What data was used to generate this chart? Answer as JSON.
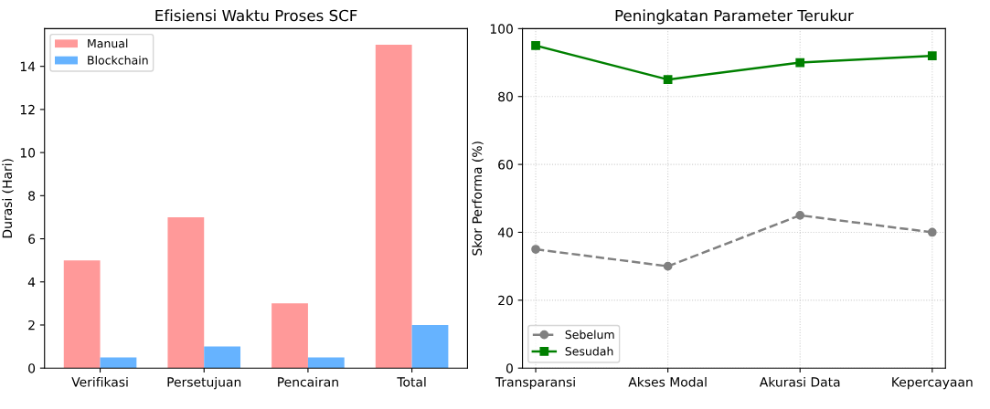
{
  "chart_data": [
    {
      "type": "bar",
      "title": "Efisiensi Waktu Proses SCF",
      "ylabel": "Durasi (Hari)",
      "categories": [
        "Verifikasi",
        "Persetujuan",
        "Pencairan",
        "Total"
      ],
      "series": [
        {
          "name": "Manual",
          "color": "#ff9999",
          "values": [
            5,
            7,
            3,
            15
          ]
        },
        {
          "name": "Blockchain",
          "color": "#66b3ff",
          "values": [
            0.5,
            1,
            0.5,
            2
          ]
        }
      ],
      "ylim": [
        0,
        15.75
      ],
      "yticks": [
        0,
        2,
        4,
        6,
        8,
        10,
        12,
        14
      ],
      "grid": false,
      "legend": "top left"
    },
    {
      "type": "line",
      "title": "Peningkatan Parameter Terukur",
      "ylabel": "Skor Performa (%)",
      "categories": [
        "Transparansi",
        "Akses Modal",
        "Akurasi Data",
        "Kepercayaan"
      ],
      "series": [
        {
          "name": "Sebelum",
          "color": "#808080",
          "values": [
            35,
            30,
            45,
            40
          ],
          "marker": "circle",
          "line_style": "dashed"
        },
        {
          "name": "Sesudah",
          "color": "#008000",
          "values": [
            95,
            85,
            90,
            92
          ],
          "marker": "square",
          "line_style": "solid"
        }
      ],
      "ylim": [
        0,
        100
      ],
      "yticks": [
        0,
        20,
        40,
        60,
        80,
        100
      ],
      "grid": true,
      "legend": "bottom left"
    }
  ]
}
